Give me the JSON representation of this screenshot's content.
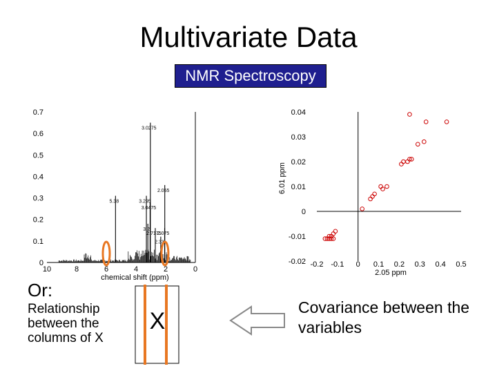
{
  "slide": {
    "title": "Multivariate Data",
    "banner": "NMR Spectroscopy",
    "or_label": "Or:",
    "relationship_text": "Relationship between the columns of X",
    "covariance_text": "Covariance between the variables",
    "matrix_label": "X"
  },
  "colors": {
    "banner_bg": "#1f1f8f",
    "highlight": "#e87722",
    "scatter_marker": "#cc0000",
    "arrow": "#888888"
  },
  "chart_data": [
    {
      "type": "line",
      "xlabel": "chemical shift (ppm)",
      "ylabel": "",
      "xlim": [
        10,
        0
      ],
      "ylim": [
        0,
        0.7
      ],
      "x_ticks": [
        "10",
        "8",
        "6",
        "4",
        "2",
        "0"
      ],
      "y_ticks": [
        "0.7",
        "0.6",
        "0.5",
        "0.4",
        "0.3",
        "0.2",
        "0.1",
        "0"
      ],
      "peaks": [
        {
          "ppm": 3.03,
          "height": 0.65
        },
        {
          "ppm": 2.06,
          "height": 0.36
        },
        {
          "ppm": 5.38,
          "height": 0.31
        },
        {
          "ppm": 3.3,
          "height": 0.31
        },
        {
          "ppm": 3.05,
          "height": 0.28
        },
        {
          "ppm": 3.2,
          "height": 0.18
        },
        {
          "ppm": 2.7,
          "height": 0.16
        },
        {
          "ppm": 2.07,
          "height": 0.16
        },
        {
          "ppm": 2.33,
          "height": 0.12
        }
      ],
      "peak_labels": [
        "3.0275",
        "2.055",
        "5.38",
        "3.295",
        "3.0475",
        "3.2",
        "2.7175",
        "2.075",
        "2.33"
      ]
    },
    {
      "type": "scatter",
      "xlabel": "2.05 ppm",
      "ylabel": "6.01 ppm",
      "xlim": [
        -0.2,
        0.5
      ],
      "ylim": [
        -0.02,
        0.04
      ],
      "x_ticks": [
        "-0.2",
        "-0.1",
        "0",
        "0.1",
        "0.2",
        "0.3",
        "0.4",
        "0.5"
      ],
      "y_ticks": [
        "0.04",
        "0.03",
        "0.02",
        "0.01",
        "0",
        "-0.01",
        "-0.02"
      ],
      "points": [
        [
          0.25,
          0.039
        ],
        [
          0.33,
          0.036
        ],
        [
          0.43,
          0.036
        ],
        [
          0.29,
          0.027
        ],
        [
          0.32,
          0.028
        ],
        [
          0.22,
          0.02
        ],
        [
          0.24,
          0.02
        ],
        [
          0.25,
          0.021
        ],
        [
          0.26,
          0.021
        ],
        [
          0.21,
          0.019
        ],
        [
          0.14,
          0.01
        ],
        [
          0.11,
          0.01
        ],
        [
          0.12,
          0.009
        ],
        [
          0.08,
          0.007
        ],
        [
          0.07,
          0.006
        ],
        [
          0.06,
          0.005
        ],
        [
          0.02,
          0.001
        ],
        [
          -0.11,
          -0.008
        ],
        [
          -0.12,
          -0.009
        ],
        [
          -0.13,
          -0.01
        ],
        [
          -0.14,
          -0.01
        ],
        [
          -0.15,
          -0.011
        ],
        [
          -0.16,
          -0.011
        ],
        [
          -0.14,
          -0.011
        ],
        [
          -0.13,
          -0.011
        ],
        [
          -0.12,
          -0.011
        ]
      ]
    }
  ]
}
